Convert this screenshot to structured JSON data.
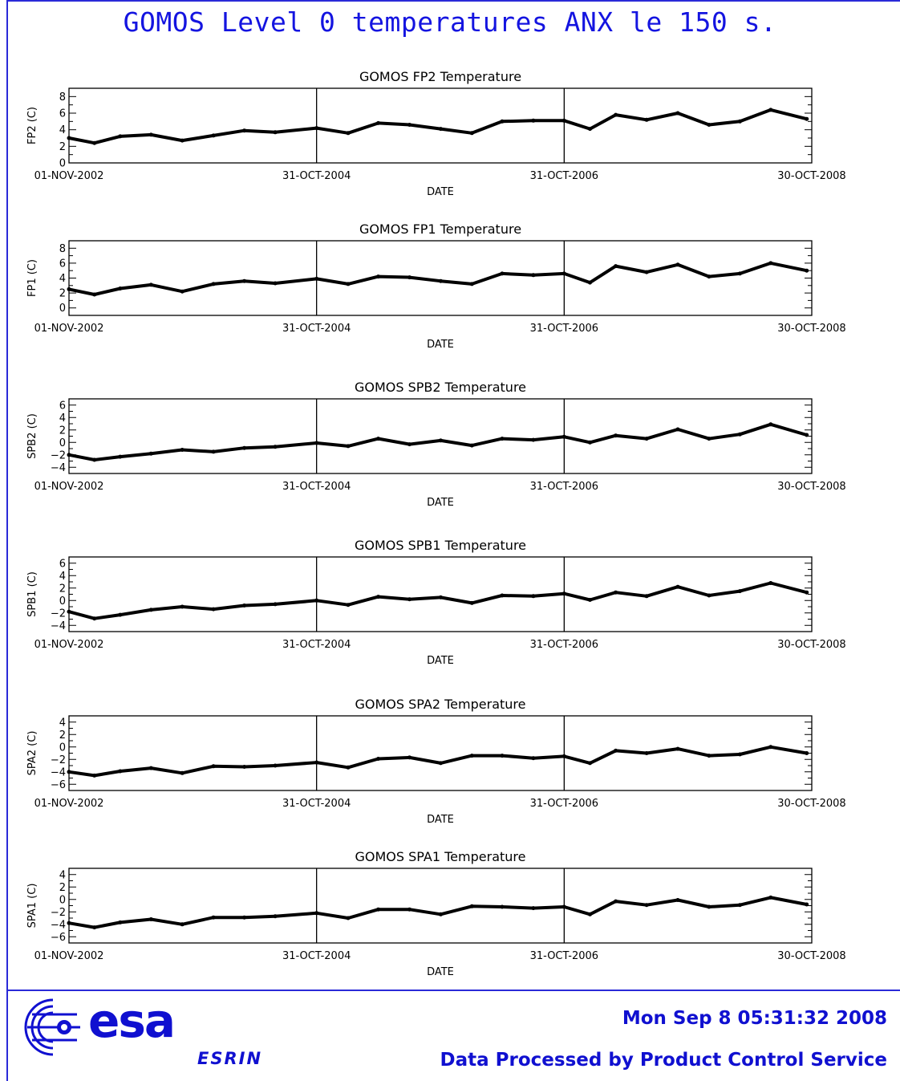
{
  "header": {
    "title": "GOMOS Level 0 temperatures ANX le 150 s."
  },
  "footer": {
    "timestamp": "Mon Sep  8 05:31:32 2008",
    "processed_by": "Data Processed by Product Control Service",
    "logo_text": "esa",
    "logo_subtext": "ESRIN"
  },
  "colors": {
    "accent": "#1414e0",
    "line": "#000000",
    "frame": "#2a2ad8"
  },
  "chart_data": [
    {
      "type": "line",
      "title": "GOMOS FP2 Temperature",
      "xlabel": "DATE",
      "ylabel": "FP2 (C)",
      "x_ticks": [
        "01-NOV-2002",
        "31-OCT-2004",
        "31-OCT-2006",
        "30-OCT-2008"
      ],
      "xlim": [
        "2002-11-01",
        "2008-10-30"
      ],
      "ylim": [
        0,
        9
      ],
      "y_ticks": [
        0,
        2,
        4,
        6,
        8
      ],
      "series": [
        {
          "x": [
            "2002-11-01",
            "2003-01-15",
            "2003-04-01",
            "2003-07-01",
            "2003-10-01",
            "2004-01-01",
            "2004-04-01",
            "2004-07-01",
            "2004-10-31",
            "2005-02-01",
            "2005-05-01",
            "2005-08-01",
            "2005-11-01",
            "2006-02-01",
            "2006-05-01",
            "2006-08-01",
            "2006-10-31",
            "2007-01-15",
            "2007-04-01",
            "2007-07-01",
            "2007-10-01",
            "2008-01-01",
            "2008-04-01",
            "2008-07-01",
            "2008-10-15"
          ],
          "values": [
            3.0,
            2.4,
            3.2,
            3.4,
            2.7,
            3.3,
            3.9,
            3.7,
            4.2,
            3.6,
            4.8,
            4.6,
            4.1,
            3.6,
            5.0,
            5.1,
            5.1,
            4.1,
            5.8,
            5.2,
            6.0,
            4.6,
            5.0,
            6.4,
            5.3
          ]
        }
      ]
    },
    {
      "type": "line",
      "title": "GOMOS FP1 Temperature",
      "xlabel": "DATE",
      "ylabel": "FP1 (C)",
      "x_ticks": [
        "01-NOV-2002",
        "31-OCT-2004",
        "31-OCT-2006",
        "30-OCT-2008"
      ],
      "xlim": [
        "2002-11-01",
        "2008-10-30"
      ],
      "ylim": [
        -1,
        9
      ],
      "y_ticks": [
        0,
        2,
        4,
        6,
        8
      ],
      "series": [
        {
          "x": [
            "2002-11-01",
            "2003-01-15",
            "2003-04-01",
            "2003-07-01",
            "2003-10-01",
            "2004-01-01",
            "2004-04-01",
            "2004-07-01",
            "2004-10-31",
            "2005-02-01",
            "2005-05-01",
            "2005-08-01",
            "2005-11-01",
            "2006-02-01",
            "2006-05-01",
            "2006-08-01",
            "2006-10-31",
            "2007-01-15",
            "2007-04-01",
            "2007-07-01",
            "2007-10-01",
            "2008-01-01",
            "2008-04-01",
            "2008-07-01",
            "2008-10-15"
          ],
          "values": [
            2.5,
            1.8,
            2.6,
            3.1,
            2.2,
            3.2,
            3.6,
            3.3,
            3.9,
            3.2,
            4.2,
            4.1,
            3.6,
            3.2,
            4.6,
            4.4,
            4.6,
            3.4,
            5.6,
            4.8,
            5.8,
            4.2,
            4.6,
            6.0,
            5.0
          ]
        }
      ]
    },
    {
      "type": "line",
      "title": "GOMOS SPB2 Temperature",
      "xlabel": "DATE",
      "ylabel": "SPB2 (C)",
      "x_ticks": [
        "01-NOV-2002",
        "31-OCT-2004",
        "31-OCT-2006",
        "30-OCT-2008"
      ],
      "xlim": [
        "2002-11-01",
        "2008-10-30"
      ],
      "ylim": [
        -5,
        7
      ],
      "y_ticks": [
        -4,
        -2,
        0,
        2,
        4,
        6
      ],
      "series": [
        {
          "x": [
            "2002-11-01",
            "2003-01-15",
            "2003-04-01",
            "2003-07-01",
            "2003-10-01",
            "2004-01-01",
            "2004-04-01",
            "2004-07-01",
            "2004-10-31",
            "2005-02-01",
            "2005-05-01",
            "2005-08-01",
            "2005-11-01",
            "2006-02-01",
            "2006-05-01",
            "2006-08-01",
            "2006-10-31",
            "2007-01-15",
            "2007-04-01",
            "2007-07-01",
            "2007-10-01",
            "2008-01-01",
            "2008-04-01",
            "2008-07-01",
            "2008-10-15"
          ],
          "values": [
            -2.0,
            -2.8,
            -2.3,
            -1.8,
            -1.2,
            -1.5,
            -0.9,
            -0.7,
            -0.1,
            -0.6,
            0.6,
            -0.3,
            0.3,
            -0.5,
            0.6,
            0.4,
            0.9,
            0.0,
            1.1,
            0.6,
            2.1,
            0.6,
            1.3,
            2.9,
            1.2
          ]
        }
      ]
    },
    {
      "type": "line",
      "title": "GOMOS SPB1 Temperature",
      "xlabel": "DATE",
      "ylabel": "SPB1 (C)",
      "x_ticks": [
        "01-NOV-2002",
        "31-OCT-2004",
        "31-OCT-2006",
        "30-OCT-2008"
      ],
      "xlim": [
        "2002-11-01",
        "2008-10-30"
      ],
      "ylim": [
        -5,
        7
      ],
      "y_ticks": [
        -4,
        -2,
        0,
        2,
        4,
        6
      ],
      "series": [
        {
          "x": [
            "2002-11-01",
            "2003-01-15",
            "2003-04-01",
            "2003-07-01",
            "2003-10-01",
            "2004-01-01",
            "2004-04-01",
            "2004-07-01",
            "2004-10-31",
            "2005-02-01",
            "2005-05-01",
            "2005-08-01",
            "2005-11-01",
            "2006-02-01",
            "2006-05-01",
            "2006-08-01",
            "2006-10-31",
            "2007-01-15",
            "2007-04-01",
            "2007-07-01",
            "2007-10-01",
            "2008-01-01",
            "2008-04-01",
            "2008-07-01",
            "2008-10-15"
          ],
          "values": [
            -1.8,
            -2.9,
            -2.3,
            -1.5,
            -1.0,
            -1.4,
            -0.8,
            -0.6,
            0.0,
            -0.7,
            0.6,
            0.2,
            0.5,
            -0.4,
            0.8,
            0.7,
            1.1,
            0.1,
            1.3,
            0.7,
            2.2,
            0.8,
            1.5,
            2.8,
            1.3
          ]
        }
      ]
    },
    {
      "type": "line",
      "title": "GOMOS SPA2 Temperature",
      "xlabel": "DATE",
      "ylabel": "SPA2 (C)",
      "x_ticks": [
        "01-NOV-2002",
        "31-OCT-2004",
        "31-OCT-2006",
        "30-OCT-2008"
      ],
      "xlim": [
        "2002-11-01",
        "2008-10-30"
      ],
      "ylim": [
        -7,
        5
      ],
      "y_ticks": [
        -6,
        -4,
        -2,
        0,
        2,
        4
      ],
      "series": [
        {
          "x": [
            "2002-11-01",
            "2003-01-15",
            "2003-04-01",
            "2003-07-01",
            "2003-10-01",
            "2004-01-01",
            "2004-04-01",
            "2004-07-01",
            "2004-10-31",
            "2005-02-01",
            "2005-05-01",
            "2005-08-01",
            "2005-11-01",
            "2006-02-01",
            "2006-05-01",
            "2006-08-01",
            "2006-10-31",
            "2007-01-15",
            "2007-04-01",
            "2007-07-01",
            "2007-10-01",
            "2008-01-01",
            "2008-04-01",
            "2008-07-01",
            "2008-10-15"
          ],
          "values": [
            -4.0,
            -4.6,
            -3.9,
            -3.4,
            -4.2,
            -3.1,
            -3.2,
            -3.0,
            -2.5,
            -3.3,
            -1.9,
            -1.7,
            -2.6,
            -1.4,
            -1.4,
            -1.8,
            -1.5,
            -2.6,
            -0.6,
            -1.0,
            -0.3,
            -1.4,
            -1.2,
            0.0,
            -1.0
          ]
        }
      ]
    },
    {
      "type": "line",
      "title": "GOMOS SPA1 Temperature",
      "xlabel": "DATE",
      "ylabel": "SPA1 (C)",
      "x_ticks": [
        "01-NOV-2002",
        "31-OCT-2004",
        "31-OCT-2006",
        "30-OCT-2008"
      ],
      "xlim": [
        "2002-11-01",
        "2008-10-30"
      ],
      "ylim": [
        -7,
        5
      ],
      "y_ticks": [
        -6,
        -4,
        -2,
        0,
        2,
        4
      ],
      "series": [
        {
          "x": [
            "2002-11-01",
            "2003-01-15",
            "2003-04-01",
            "2003-07-01",
            "2003-10-01",
            "2004-01-01",
            "2004-04-01",
            "2004-07-01",
            "2004-10-31",
            "2005-02-01",
            "2005-05-01",
            "2005-08-01",
            "2005-11-01",
            "2006-02-01",
            "2006-05-01",
            "2006-08-01",
            "2006-10-31",
            "2007-01-15",
            "2007-04-01",
            "2007-07-01",
            "2007-10-01",
            "2008-01-01",
            "2008-04-01",
            "2008-07-01",
            "2008-10-15"
          ],
          "values": [
            -3.8,
            -4.5,
            -3.7,
            -3.2,
            -4.0,
            -2.9,
            -2.9,
            -2.7,
            -2.2,
            -3.0,
            -1.6,
            -1.6,
            -2.4,
            -1.1,
            -1.2,
            -1.4,
            -1.2,
            -2.4,
            -0.3,
            -0.9,
            -0.1,
            -1.2,
            -0.9,
            0.3,
            -0.8
          ]
        }
      ]
    }
  ]
}
